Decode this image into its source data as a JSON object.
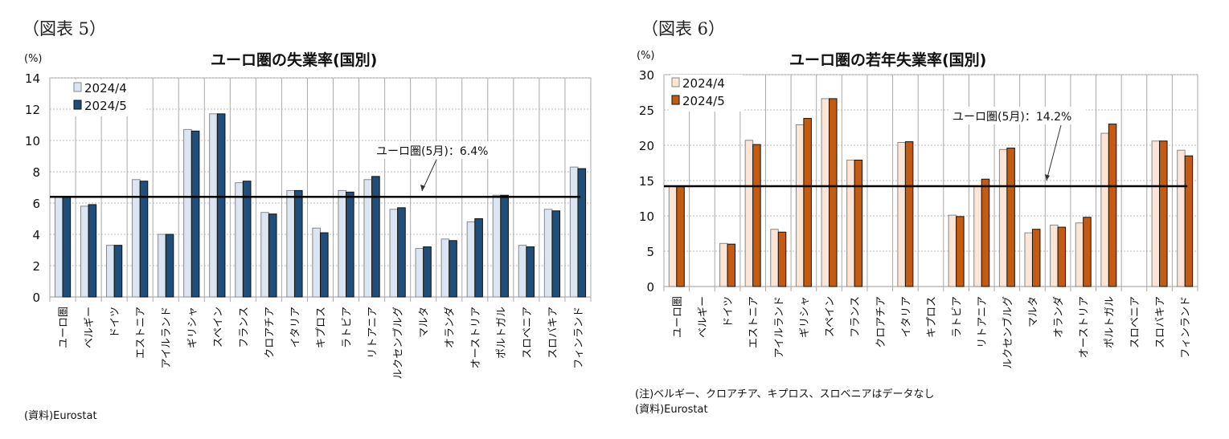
{
  "charts_header": [
    {
      "figure_label": "（図表 5）",
      "unit": "(%)",
      "source": "(資料)Eurostat"
    },
    {
      "figure_label": "（図表 6）",
      "unit": "(%)",
      "note": "(注)ベルギー、クロアチア、キプロス、スロベニアはデータなし",
      "source": "(資料)Eurostat"
    }
  ],
  "chart_data": [
    {
      "type": "bar",
      "title": "ユーロ圏の失業率(国別)",
      "ylabel": "(%)",
      "ylim": [
        0,
        14
      ],
      "yticks": [
        0,
        2,
        4,
        6,
        8,
        10,
        12,
        14
      ],
      "grid": true,
      "legend_placement": "top-left",
      "categories": [
        "ユーロ圏",
        "ベルギー",
        "ドイツ",
        "エストニア",
        "アイルランド",
        "ギリシャ",
        "スペイン",
        "フランス",
        "クロアチア",
        "イタリア",
        "キプロス",
        "ラトビア",
        "リトアニア",
        "ルクセンブルグ",
        "マルタ",
        "オランダ",
        "オーストリア",
        "ポルトガル",
        "スロベニア",
        "スロバキア",
        "フィンランド"
      ],
      "series": [
        {
          "name": "2024/4",
          "color": "#dce6f2",
          "values": [
            6.4,
            5.8,
            3.3,
            7.5,
            4.0,
            10.7,
            11.7,
            7.3,
            5.4,
            6.8,
            4.4,
            6.8,
            7.5,
            5.6,
            3.1,
            3.7,
            4.8,
            6.5,
            3.3,
            5.6,
            8.3
          ]
        },
        {
          "name": "2024/5",
          "color": "#1f4e79",
          "values": [
            6.4,
            5.9,
            3.3,
            7.4,
            4.0,
            10.6,
            11.7,
            7.4,
            5.3,
            6.8,
            4.1,
            6.7,
            7.7,
            5.7,
            3.2,
            3.6,
            5.0,
            6.5,
            3.2,
            5.5,
            8.2
          ]
        }
      ],
      "reference_line": {
        "value": 6.4,
        "label": "ユーロ圏(5月)：6.4%"
      }
    },
    {
      "type": "bar",
      "title": "ユーロ圏の若年失業率(国別)",
      "ylabel": "(%)",
      "ylim": [
        0,
        30
      ],
      "yticks": [
        0,
        5,
        10,
        15,
        20,
        25,
        30
      ],
      "grid": true,
      "legend_placement": "top-left",
      "categories": [
        "ユーロ圏",
        "ベルギー",
        "ドイツ",
        "エストニア",
        "アイルランド",
        "ギリシャ",
        "スペイン",
        "フランス",
        "クロアチア",
        "イタリア",
        "キプロス",
        "ラトビア",
        "リトアニア",
        "ルクセンブルグ",
        "マルタ",
        "オランダ",
        "オーストリア",
        "ポルトガル",
        "スロベニア",
        "スロバキア",
        "フィンランド"
      ],
      "series": [
        {
          "name": "2024/4",
          "color": "#fbe5d6",
          "values": [
            14.2,
            null,
            6.1,
            20.7,
            8.1,
            22.9,
            26.6,
            17.9,
            null,
            20.4,
            null,
            10.1,
            14.2,
            19.4,
            7.6,
            8.7,
            9.0,
            21.7,
            null,
            20.6,
            19.3
          ]
        },
        {
          "name": "2024/5",
          "color": "#c55a11",
          "values": [
            14.2,
            null,
            6.0,
            20.1,
            7.7,
            23.8,
            26.6,
            17.9,
            null,
            20.5,
            null,
            9.9,
            15.2,
            19.6,
            8.1,
            8.4,
            9.8,
            23.0,
            null,
            20.6,
            18.5
          ]
        }
      ],
      "reference_line": {
        "value": 14.2,
        "label": "ユーロ圏(5月)：14.2%"
      }
    }
  ]
}
